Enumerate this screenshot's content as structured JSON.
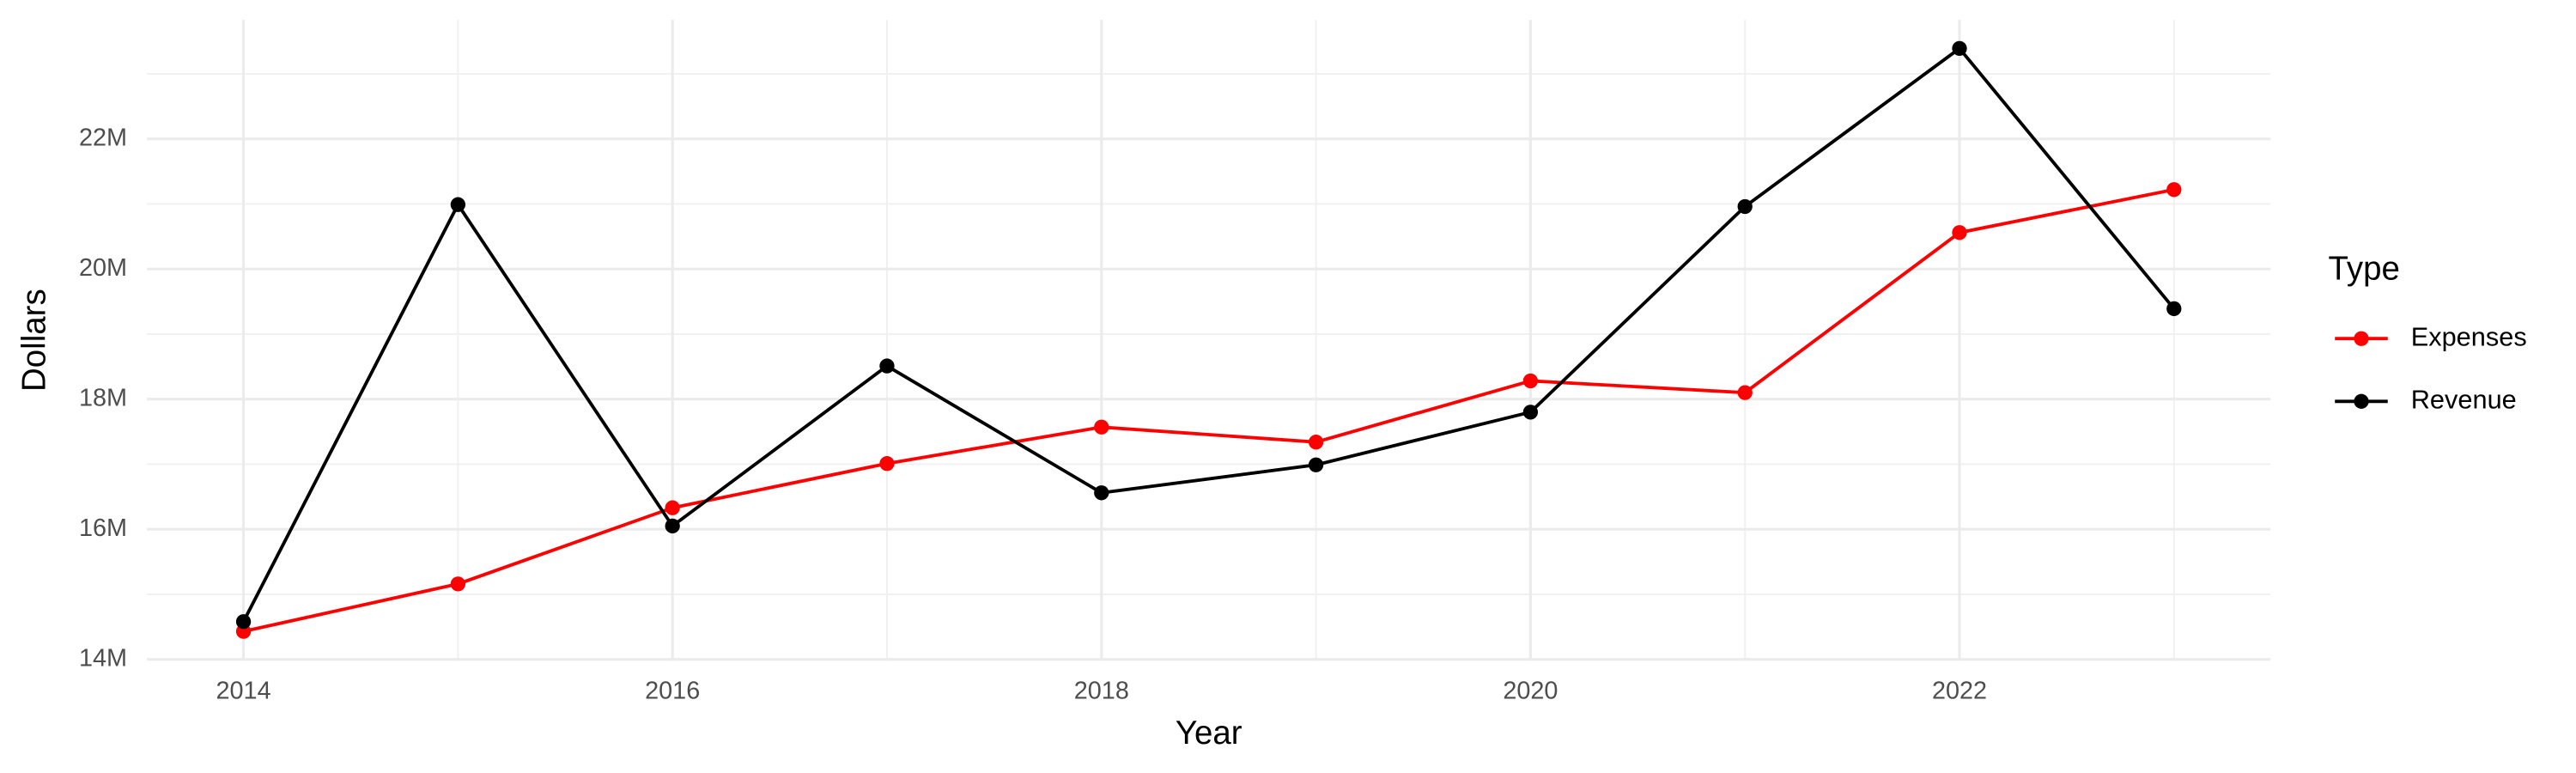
{
  "chart_data": {
    "type": "line",
    "x_label": "Year",
    "y_label": "Dollars",
    "legend_title": "Type",
    "legend_position": "right",
    "grid": true,
    "x": [
      2014,
      2015,
      2016,
      2017,
      2018,
      2019,
      2020,
      2021,
      2022,
      2023
    ],
    "xlim": [
      2013.55,
      2023.45
    ],
    "xticks": [
      2014,
      2016,
      2018,
      2020,
      2022
    ],
    "ylim": [
      13980000,
      23830000
    ],
    "yticks": [
      {
        "value": 14000000,
        "label": "14M"
      },
      {
        "value": 16000000,
        "label": "16M"
      },
      {
        "value": 18000000,
        "label": "18M"
      },
      {
        "value": 20000000,
        "label": "20M"
      },
      {
        "value": 22000000,
        "label": "22M"
      }
    ],
    "series": [
      {
        "name": "Expenses",
        "color": "#ff0000",
        "values": [
          14430000,
          15160000,
          16330000,
          17010000,
          17570000,
          17340000,
          18280000,
          18100000,
          20560000,
          21220000
        ]
      },
      {
        "name": "Revenue",
        "color": "#000000",
        "values": [
          14580000,
          20990000,
          16050000,
          18510000,
          16560000,
          16990000,
          17800000,
          20960000,
          23390000,
          19390000
        ]
      }
    ]
  }
}
